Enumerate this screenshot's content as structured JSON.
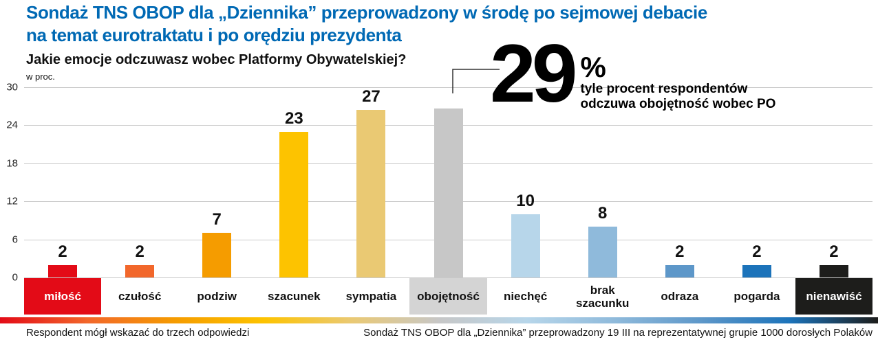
{
  "header": {
    "title_line1": "Sondaż TNS OBOP dla „Dziennika” przeprowadzony w środę po sejmowej debacie",
    "title_line2": "na temat eurotraktatu i po orędziu prezydenta",
    "question": "Jakie emocje odczuwasz wobec Platformy Obywatelskiej?",
    "unit_label": "w proc."
  },
  "callout": {
    "value": "29",
    "percent_sign": "%",
    "line1": "tyle procent respondentów",
    "line2": "odczuwa obojętność wobec PO"
  },
  "chart_data": {
    "type": "bar",
    "title": "Jakie emocje odczuwasz wobec Platformy Obywatelskiej?",
    "xlabel": "",
    "ylabel": "w proc.",
    "ylim": [
      0,
      30
    ],
    "yticks": [
      30,
      24,
      18,
      12,
      6,
      0
    ],
    "grid": true,
    "legend": "none",
    "categories": [
      "miłość",
      "czułość",
      "podziw",
      "szacunek",
      "sympatia",
      "obojętność",
      "niechęć",
      "brak szacunku",
      "odraza",
      "pogarda",
      "nienawiść"
    ],
    "values": [
      2,
      2,
      7,
      23,
      27,
      29,
      10,
      8,
      2,
      2,
      2
    ],
    "bars": [
      {
        "label": "miłość",
        "value": 2,
        "display_value": "2",
        "color": "#e30b17",
        "label_bg": "#e30b17",
        "label_fg": "#ffffff"
      },
      {
        "label": "czułość",
        "value": 2,
        "display_value": "2",
        "color": "#f2672b",
        "label_bg": "",
        "label_fg": "#111111"
      },
      {
        "label": "podziw",
        "value": 7,
        "display_value": "7",
        "color": "#f59c00",
        "label_bg": "",
        "label_fg": "#111111"
      },
      {
        "label": "szacunek",
        "value": 23,
        "display_value": "23",
        "color": "#fdc300",
        "label_bg": "",
        "label_fg": "#111111"
      },
      {
        "label": "sympatia",
        "value": 27,
        "display_value": "27",
        "color": "#eac973",
        "label_bg": "",
        "label_fg": "#111111"
      },
      {
        "label": "obojętność",
        "value": 29,
        "display_value": "",
        "color": "#c7c7c7",
        "label_bg": "#d4d4d4",
        "label_fg": "#111111"
      },
      {
        "label": "niechęć",
        "value": 10,
        "display_value": "10",
        "color": "#b7d6ea",
        "label_bg": "",
        "label_fg": "#111111"
      },
      {
        "label": "brak szacunku",
        "value": 8,
        "display_value": "8",
        "color": "#8fbadb",
        "label_bg": "",
        "label_fg": "#111111"
      },
      {
        "label": "odraza",
        "value": 2,
        "display_value": "2",
        "color": "#5d97c9",
        "label_bg": "",
        "label_fg": "#111111"
      },
      {
        "label": "pogarda",
        "value": 2,
        "display_value": "2",
        "color": "#1c73ba",
        "label_bg": "",
        "label_fg": "#111111"
      },
      {
        "label": "nienawiść",
        "value": 2,
        "display_value": "2",
        "color": "#1d1d1b",
        "label_bg": "#1d1d1b",
        "label_fg": "#ffffff"
      }
    ]
  },
  "footnotes": {
    "left": "Respondent mógł wskazać do trzech odpowiedzi",
    "right": "Sondaż TNS OBOP dla „Dziennika” przeprowadzony 19 III na reprezentatywnej grupie 1000 dorosłych Polaków"
  },
  "colors": {
    "title_blue": "#0069b4",
    "grid_line": "#c9c9c9",
    "text": "#111111",
    "connector_line": "#333333"
  }
}
